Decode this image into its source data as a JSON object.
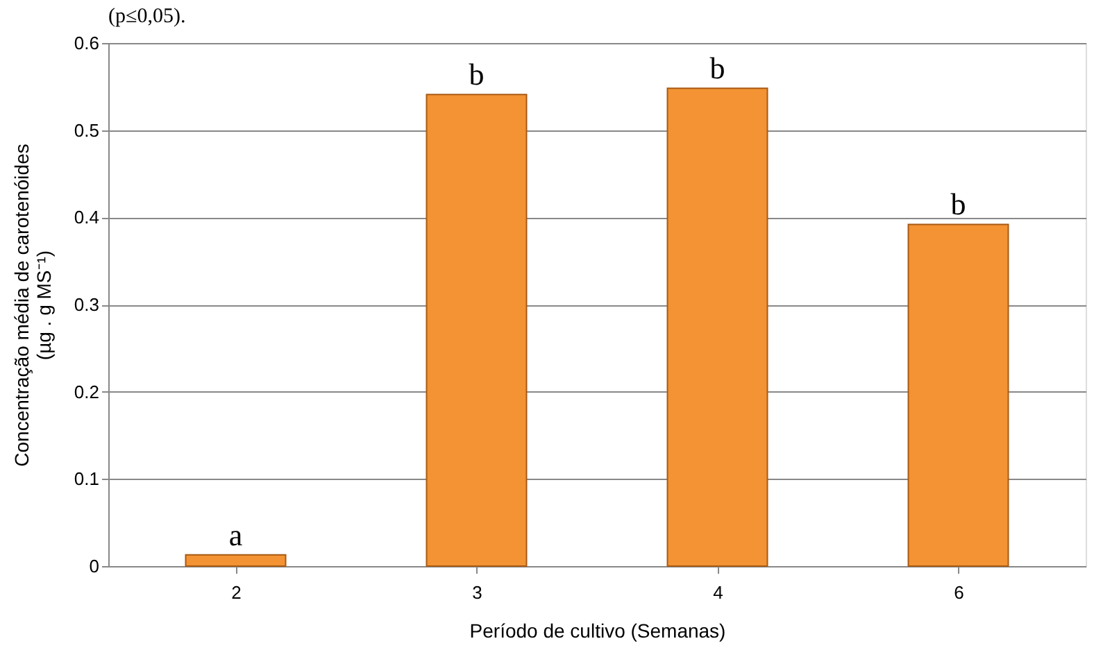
{
  "chart_data": {
    "type": "bar",
    "categories": [
      "2",
      "3",
      "4",
      "6"
    ],
    "values": [
      0.013,
      0.541,
      0.548,
      0.392
    ],
    "value_labels": [
      "a",
      "b",
      "b",
      "b"
    ],
    "color": "#f39333",
    "xlabel": "Período de cultivo (Semanas)",
    "ylabel": "Concentração média de carotenóides\n(µg . g MS⁻¹)",
    "ylim": [
      0,
      0.6
    ],
    "yticks": [
      0,
      0.1,
      0.2,
      0.3,
      0.4,
      0.5,
      0.6
    ],
    "grid": "y",
    "annotations": [
      "(p≤0,05)."
    ]
  }
}
